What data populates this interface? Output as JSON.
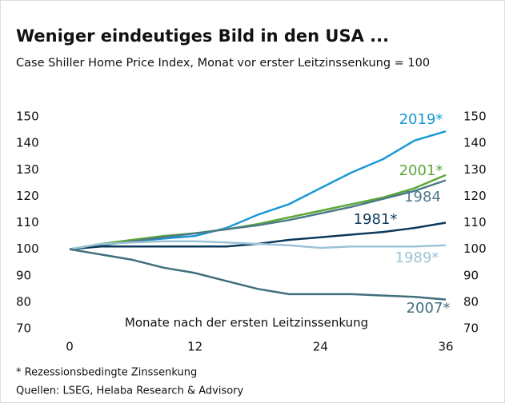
{
  "chart_data": {
    "type": "line",
    "title": "Weniger eindeutiges Bild in den USA ...",
    "subtitle": "Case Shiller Home Price Index, Monat vor erster Leitzinssenkung = 100",
    "x_label": "Monate nach der ersten Leitzinssenkung",
    "footnotes": [
      "* Rezessionsbedingte Zinssenkung",
      "Quellen: LSEG, Helaba Research & Advisory"
    ],
    "x": [
      0,
      3,
      6,
      9,
      12,
      15,
      18,
      21,
      24,
      27,
      30,
      33,
      36
    ],
    "xlim": [
      0,
      36
    ],
    "xticks": [
      0,
      12,
      24,
      36
    ],
    "ylim": [
      70,
      150
    ],
    "yticks": [
      70,
      80,
      90,
      100,
      110,
      120,
      130,
      140,
      150
    ],
    "y2lim": [
      70,
      150
    ],
    "y2ticks": [
      70,
      80,
      90,
      100,
      110,
      120,
      130,
      140,
      150
    ],
    "series": [
      {
        "name": "2019*",
        "color": "#1a9ad6",
        "values": [
          100,
          101.5,
          103,
          104,
          105,
          108,
          113,
          117,
          123,
          129,
          134,
          141,
          144.5
        ]
      },
      {
        "name": "2001*",
        "color": "#5ca836",
        "values": [
          100,
          102,
          103.5,
          105,
          106,
          107.5,
          109.5,
          112,
          114.5,
          117,
          119.5,
          123,
          128
        ]
      },
      {
        "name": "1984",
        "color": "#4c7a8a",
        "values": [
          100,
          101.5,
          103,
          104.5,
          106,
          107.5,
          109,
          111,
          113.5,
          116,
          119,
          122,
          126
        ]
      },
      {
        "name": "1981*",
        "color": "#0d3a5c",
        "values": [
          100,
          101,
          101,
          101,
          101,
          101,
          102,
          103.5,
          104.5,
          105.5,
          106.5,
          108,
          110
        ]
      },
      {
        "name": "1989*",
        "color": "#9cc4d6",
        "values": [
          100,
          102,
          102.5,
          103,
          103,
          102.5,
          102,
          101.5,
          100.5,
          101,
          101,
          101,
          101.5
        ]
      },
      {
        "name": "2007*",
        "color": "#3f6f7c",
        "values": [
          100,
          98,
          96,
          93,
          91,
          88,
          85,
          83,
          83,
          83,
          82.5,
          82,
          81
        ]
      }
    ]
  }
}
